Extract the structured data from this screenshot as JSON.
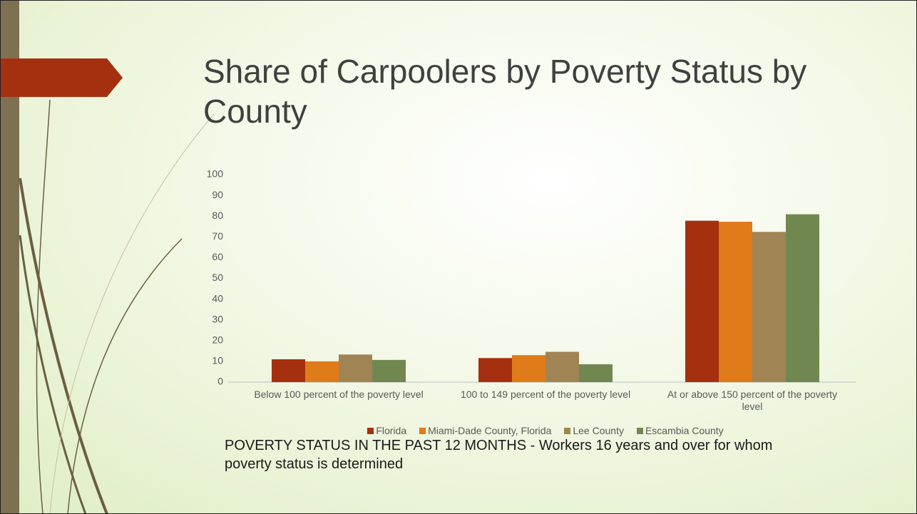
{
  "chart_data": {
    "type": "bar",
    "title": "Share of Carpoolers by Poverty Status by County",
    "categories": [
      "Below 100 percent of the poverty level",
      "100 to 149 percent of the poverty level",
      "At or above 150 percent of the poverty level"
    ],
    "series": [
      {
        "name": "Florida",
        "color": "#a5300f",
        "values": [
          11,
          11.6,
          77.8
        ]
      },
      {
        "name": "Miami-Dade County, Florida",
        "color": "#e07b19",
        "values": [
          10,
          13,
          77.3
        ]
      },
      {
        "name": "Lee County",
        "color": "#a08453",
        "values": [
          13.3,
          14.6,
          72.4
        ]
      },
      {
        "name": "Escambia County",
        "color": "#70884f",
        "values": [
          10.7,
          8.6,
          80.9
        ]
      }
    ],
    "ylim": [
      0,
      100
    ],
    "yticks": [
      0,
      10,
      20,
      30,
      40,
      50,
      60,
      70,
      80,
      90,
      100
    ],
    "legend": "bottom",
    "note": "POVERTY STATUS IN THE PAST 12 MONTHS - Workers 16 years and over for whom poverty status is determined"
  }
}
